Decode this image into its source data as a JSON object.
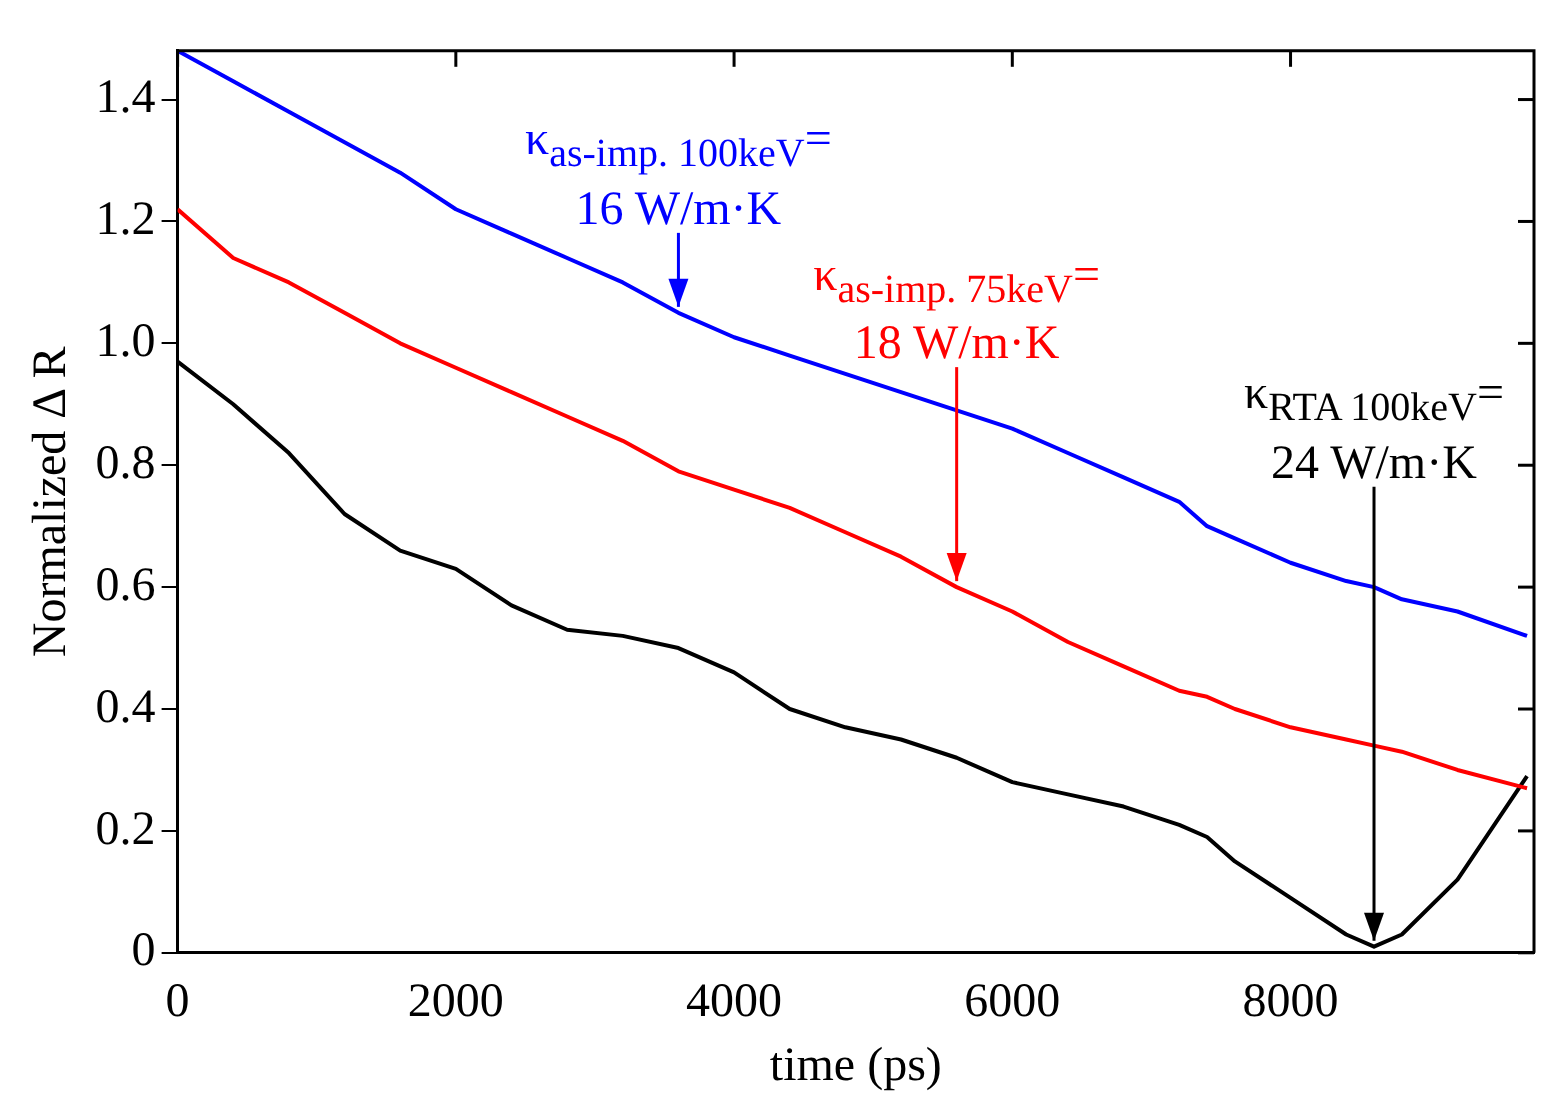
{
  "chart_data": {
    "type": "line",
    "xlabel": "time (ps)",
    "ylabel": "Normalized Δ R",
    "x": [
      0,
      400,
      800,
      1200,
      1600,
      2000,
      2400,
      2800,
      3200,
      3600,
      4000,
      4400,
      4800,
      5200,
      5600,
      6000,
      6400,
      6800,
      7200,
      7400,
      7600,
      8000,
      8400,
      8600,
      8800,
      9200,
      9700
    ],
    "series": [
      {
        "color": "#0000ff",
        "values": [
          1.48,
          1.43,
          1.38,
          1.33,
          1.28,
          1.22,
          1.18,
          1.14,
          1.1,
          1.05,
          1.01,
          0.98,
          0.95,
          0.92,
          0.89,
          0.86,
          0.82,
          0.78,
          0.74,
          0.7,
          0.68,
          0.64,
          0.61,
          0.6,
          0.58,
          0.56,
          0.52
        ]
      },
      {
        "color": "#ff0000",
        "values": [
          1.22,
          1.14,
          1.1,
          1.05,
          1.0,
          0.96,
          0.92,
          0.88,
          0.84,
          0.79,
          0.76,
          0.73,
          0.69,
          0.65,
          0.6,
          0.56,
          0.51,
          0.47,
          0.43,
          0.42,
          0.4,
          0.37,
          0.35,
          0.34,
          0.33,
          0.3,
          0.27
        ]
      },
      {
        "color": "#000000",
        "values": [
          0.97,
          0.9,
          0.82,
          0.72,
          0.66,
          0.63,
          0.57,
          0.53,
          0.52,
          0.5,
          0.46,
          0.4,
          0.37,
          0.35,
          0.32,
          0.28,
          0.26,
          0.24,
          0.21,
          0.19,
          0.15,
          0.09,
          0.03,
          0.01,
          0.03,
          0.12,
          0.29
        ]
      }
    ],
    "xlim": [
      0,
      9750
    ],
    "xticks": [
      0,
      2000,
      4000,
      6000,
      8000
    ],
    "ylim": [
      0,
      1.48
    ],
    "yticks": [
      0,
      0.2,
      0.4,
      0.6,
      0.8,
      {
        "value": 1,
        "label": "1.0"
      },
      1.2,
      1.4
    ],
    "grid": false,
    "legend": false,
    "marker": "none",
    "line_style": "solid",
    "annotations": [
      {
        "text": "κ$_{as-imp. 100keV}$=\n16 W/m·K",
        "x": 3600,
        "y": 1.05
      },
      {
        "text": "κ$_{as-imp. 75keV}$=\n18 W/m·K",
        "x": 5600,
        "y": 0.6
      },
      {
        "text": "κ$_{RTA 100keV}$=\n24 W/m·K",
        "x": 8600,
        "y": 0.01
      }
    ]
  }
}
